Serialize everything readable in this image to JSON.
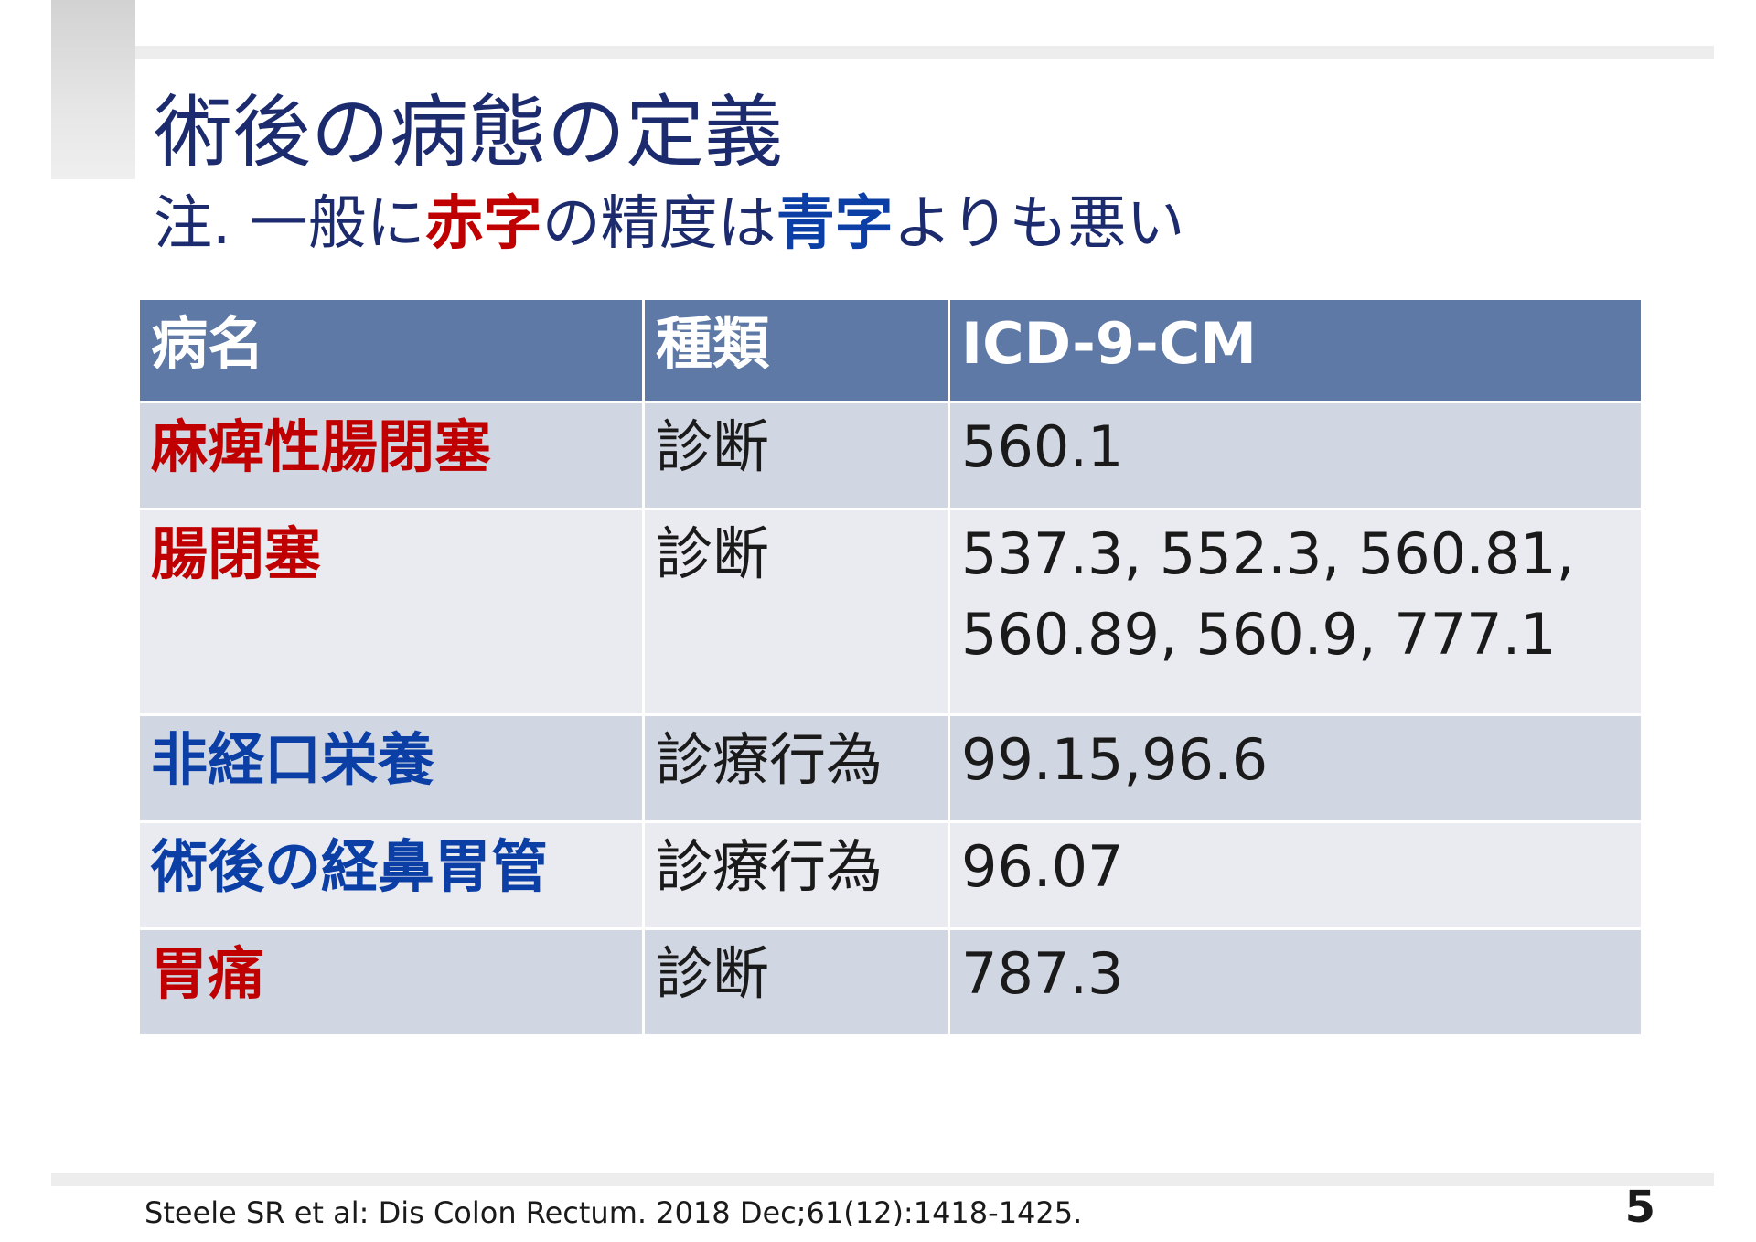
{
  "slide": {
    "title": "術後の病態の定義",
    "subtitle": {
      "prefix": "注. 一般に",
      "red_word": "赤字",
      "middle": "の精度は",
      "blue_word": "青字",
      "suffix": "よりも悪い"
    },
    "colors": {
      "title": "#1c2a6e",
      "red": "#c00000",
      "blue": "#0b3fa6",
      "header_bg": "#5e79a6",
      "row_dark": "#d1d7e2",
      "row_light": "#e9ebf1"
    },
    "table": {
      "headers": [
        "病名",
        "種類",
        "ICD-9-CM"
      ],
      "rows": [
        {
          "name": "麻痺性腸閉塞",
          "name_color": "red",
          "type": "診断",
          "codes": [
            "560.1"
          ]
        },
        {
          "name": "腸閉塞",
          "name_color": "red",
          "type": "診断",
          "codes": [
            "537.3, 552.3, 560.81,",
            "560.89, 560.9, 777.1"
          ]
        },
        {
          "name": "非経口栄養",
          "name_color": "blue",
          "type": "診療行為",
          "codes": [
            "99.15,96.6"
          ]
        },
        {
          "name": "術後の経鼻胃管",
          "name_color": "blue",
          "type": "診療行為",
          "codes": [
            "96.07"
          ]
        },
        {
          "name": "胃痛",
          "name_color": "red",
          "type": "診断",
          "codes": [
            "787.3"
          ]
        }
      ]
    },
    "citation": "Steele SR et al: Dis Colon Rectum. 2018 Dec;61(12):1418-1425.",
    "page_number": "5"
  }
}
